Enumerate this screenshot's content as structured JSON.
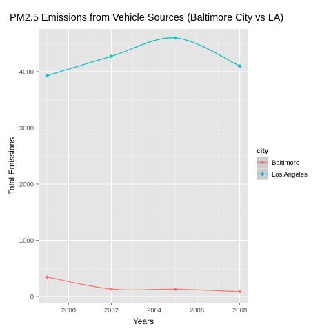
{
  "chart_data": {
    "type": "line",
    "title": "PM2.5 Emissions from Vehicle Sources (Baltimore City vs LA)",
    "xlabel": "Years",
    "ylabel": "Total Emissions",
    "x": [
      1999,
      2002,
      2005,
      2008
    ],
    "xlim": [
      1998.6,
      2008.4
    ],
    "ylim": [
      -110,
      4760
    ],
    "xticks": [
      2000,
      2002,
      2004,
      2006,
      2008
    ],
    "yticks": [
      0,
      1000,
      2000,
      3000,
      4000
    ],
    "grid": true,
    "background": "#e5e5e5",
    "legend": {
      "title": "city",
      "position": "right"
    },
    "series": [
      {
        "name": "Baltimore",
        "color": "#f8766d",
        "values": [
          346.8,
          134.3,
          130.4,
          88.3
        ]
      },
      {
        "name": "Los Angeles",
        "color": "#00bfc4",
        "values": [
          3931.1,
          4274.0,
          4601.4,
          4101.3
        ]
      }
    ]
  }
}
